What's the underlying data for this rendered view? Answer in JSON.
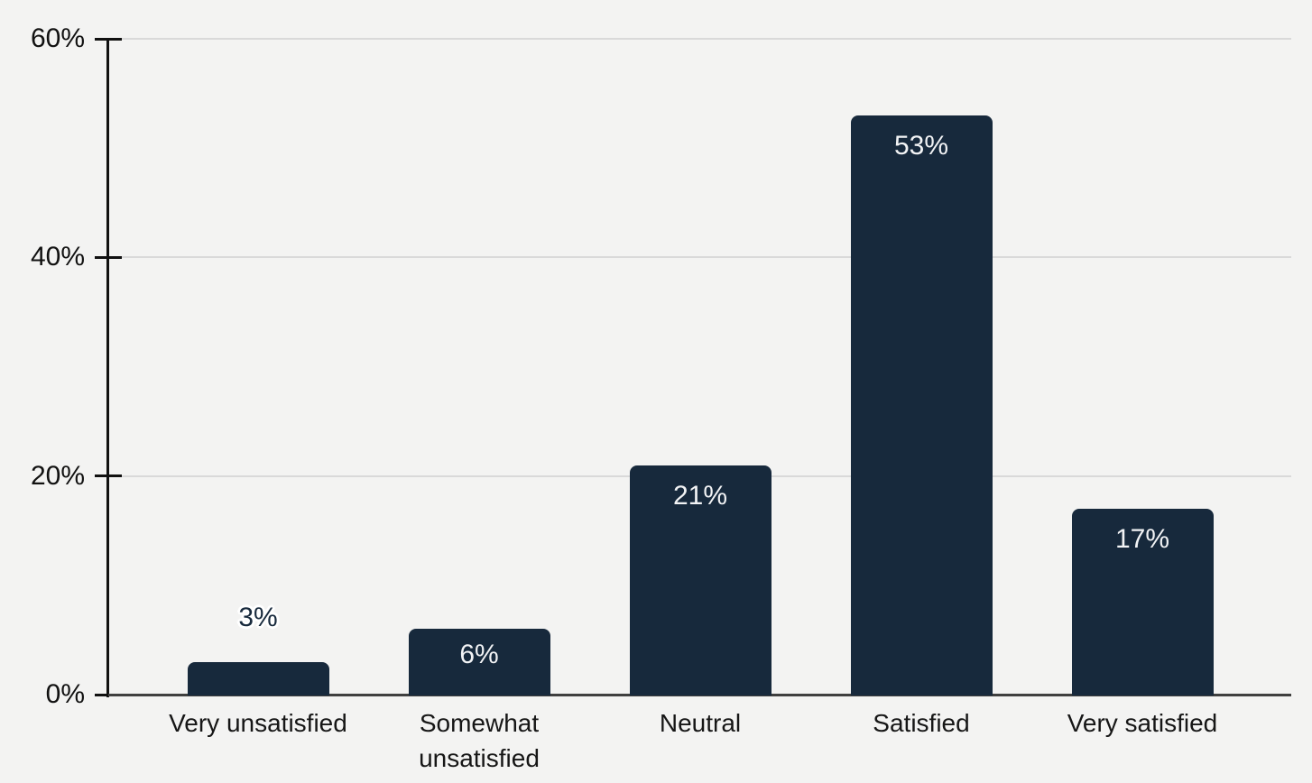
{
  "chart_data": {
    "type": "bar",
    "title": "",
    "categories": [
      "Very unsatisfied",
      "Somewhat unsatisfied",
      "Neutral",
      "Satisfied",
      "Very satisfied"
    ],
    "values": [
      3,
      6,
      21,
      53,
      17
    ],
    "value_labels": [
      "3%",
      "6%",
      "21%",
      "53%",
      "17%"
    ],
    "xlabel": "",
    "ylabel": "",
    "ylim": [
      0,
      60
    ],
    "yticks": [
      0,
      20,
      40,
      60
    ],
    "ytick_labels": [
      "0%",
      "20%",
      "40%",
      "60%"
    ],
    "grid": true,
    "legend": false,
    "colors": {
      "bar": "#17293c",
      "background": "#f3f3f2",
      "gridline": "#d9d9d9",
      "axis": "#111111",
      "baseline": "#3f3f3f",
      "value_label_inside": "#f2f3f5",
      "value_label_outside": "#17293c",
      "tick_text": "#111111"
    }
  }
}
